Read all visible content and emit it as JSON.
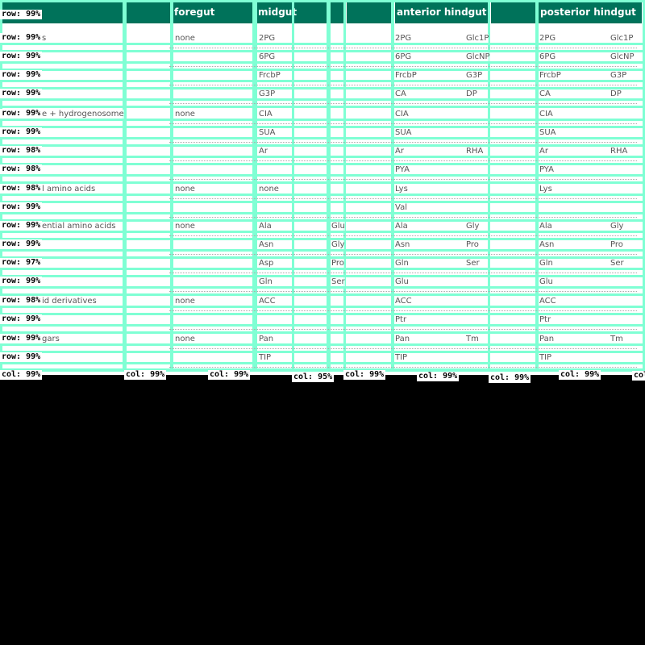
{
  "header": {
    "foregut": "foregut",
    "midgut": "midgut",
    "anterior_hindgut": "anterior hindgut",
    "posterior_hindgut": "posterior hindgut"
  },
  "rows": [
    {
      "label": "s",
      "fore": "none",
      "mid": "2PG",
      "mid2": "",
      "ant1": "2PG",
      "ant2": "Glc1P",
      "post1": "2PG",
      "post2": "Glc1P"
    },
    {
      "label": "",
      "fore": "",
      "mid": "6PG",
      "mid2": "",
      "ant1": "6PG",
      "ant2": "GlcNP",
      "post1": "6PG",
      "post2": "GlcNP"
    },
    {
      "label": "",
      "fore": "",
      "mid": "FrcbP",
      "mid2": "",
      "ant1": "FrcbP",
      "ant2": "G3P",
      "post1": "FrcbP",
      "post2": "G3P"
    },
    {
      "label": "",
      "fore": "",
      "mid": "G3P",
      "mid2": "",
      "ant1": "CA",
      "ant2": "DP",
      "post1": "CA",
      "post2": "DP"
    },
    {
      "label": "e + hydrogenosome",
      "fore": "none",
      "mid": "CIA",
      "mid2": "",
      "ant1": "CIA",
      "ant2": "",
      "post1": "CIA",
      "post2": ""
    },
    {
      "label": "",
      "fore": "",
      "mid": "SUA",
      "mid2": "",
      "ant1": "SUA",
      "ant2": "",
      "post1": "SUA",
      "post2": ""
    },
    {
      "label": "",
      "fore": "",
      "mid": "Ar",
      "mid2": "",
      "ant1": "Ar",
      "ant2": "RHA",
      "post1": "Ar",
      "post2": "RHA"
    },
    {
      "label": "",
      "fore": "",
      "mid": "",
      "mid2": "",
      "ant1": "PYA",
      "ant2": "",
      "post1": "PYA",
      "post2": ""
    },
    {
      "label": "l amino acids",
      "fore": "none",
      "mid": "none",
      "mid2": "",
      "ant1": "Lys",
      "ant2": "",
      "post1": "Lys",
      "post2": ""
    },
    {
      "label": "",
      "fore": "",
      "mid": "",
      "mid2": "",
      "ant1": "Val",
      "ant2": "",
      "post1": "",
      "post2": ""
    },
    {
      "label": "ential amino acids",
      "fore": "none",
      "mid": "Ala",
      "mid2": "Glu",
      "ant1": "Ala",
      "ant2": "Gly",
      "post1": "Ala",
      "post2": "Gly"
    },
    {
      "label": "",
      "fore": "",
      "mid": "Asn",
      "mid2": "Gly",
      "ant1": "Asn",
      "ant2": "Pro",
      "post1": "Asn",
      "post2": "Pro"
    },
    {
      "label": "",
      "fore": "",
      "mid": "Asp",
      "mid2": "Pro",
      "ant1": "Gln",
      "ant2": "Ser",
      "post1": "Gln",
      "post2": "Ser"
    },
    {
      "label": "",
      "fore": "",
      "mid": "Gln",
      "mid2": "Ser",
      "ant1": "Glu",
      "ant2": "",
      "post1": "Glu",
      "post2": ""
    },
    {
      "label": "id derivatives",
      "fore": "none",
      "mid": "ACC",
      "mid2": "",
      "ant1": "ACC",
      "ant2": "",
      "post1": "ACC",
      "post2": ""
    },
    {
      "label": "",
      "fore": "",
      "mid": "",
      "mid2": "",
      "ant1": "Ptr",
      "ant2": "",
      "post1": "Ptr",
      "post2": ""
    },
    {
      "label": "gars",
      "fore": "none",
      "mid": "Pan",
      "mid2": "",
      "ant1": "Pan",
      "ant2": "Tm",
      "post1": "Pan",
      "post2": "Tm"
    },
    {
      "label": "",
      "fore": "",
      "mid": "TIP",
      "mid2": "",
      "ant1": "TIP",
      "ant2": "",
      "post1": "TIP",
      "post2": ""
    }
  ],
  "row_tags": [
    "row: 99%",
    "row: 99%",
    "row: 99%",
    "row: 99%",
    "row: 99%",
    "row: 99%",
    "row: 99%",
    "row: 98%",
    "row: 98%",
    "row: 98%",
    "row: 99%",
    "row: 99%",
    "row: 99%",
    "row: 97%",
    "row: 99%",
    "row: 98%",
    "row: 99%",
    "row: 99%",
    "row: 99%"
  ],
  "col_tags": [
    "col: 99%",
    "col: 99%",
    "col: 99%",
    "col: 95%",
    "col: 99%",
    "col: 99%",
    "col: 99%",
    "col: 99%",
    "col"
  ],
  "colors": {
    "header_bg": "#00725a",
    "overlay": "#7fffd4",
    "background": "#000000"
  }
}
